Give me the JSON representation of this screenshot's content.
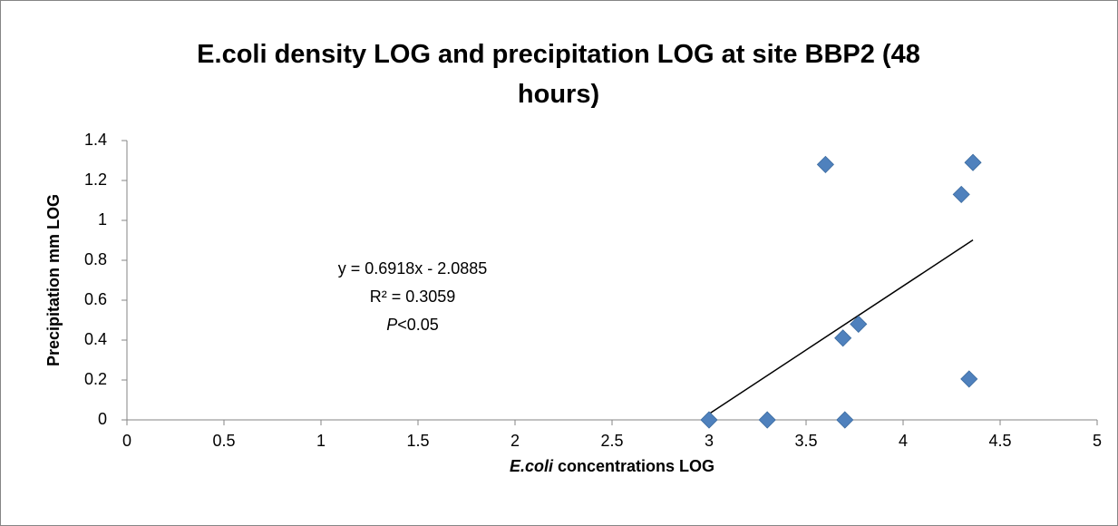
{
  "chart_data": {
    "type": "scatter",
    "title": "E.coli density LOG and precipitation LOG at site BBP2 (48 hours)",
    "x_label": "E.coli concentrations LOG",
    "y_label": "Precipitation mm LOG",
    "annotations": [
      "y = 0.6918x - 2.0885",
      "R² = 0.3059",
      "P<0.05"
    ],
    "series": [
      {
        "name": "Precipitation mm LOG",
        "color": "#4f81bd",
        "x": [
          3.0,
          3.3,
          3.7,
          3.6,
          4.36,
          4.3,
          3.77,
          3.69,
          4.34
        ],
        "values": [
          0,
          0,
          0,
          1.28,
          1.29,
          1.13,
          0.48,
          0.41,
          0.205
        ]
      }
    ],
    "xlim": [
      0,
      5
    ],
    "xticks": [
      0,
      0.5,
      1,
      1.5,
      2,
      2.5,
      3,
      3.5,
      4,
      4.5,
      5
    ],
    "ylim": [
      0,
      1.4
    ],
    "yticks": [
      0,
      0.2,
      0.4,
      0.6,
      0.8,
      1,
      1.2,
      1.4
    ],
    "trendline": true
  }
}
